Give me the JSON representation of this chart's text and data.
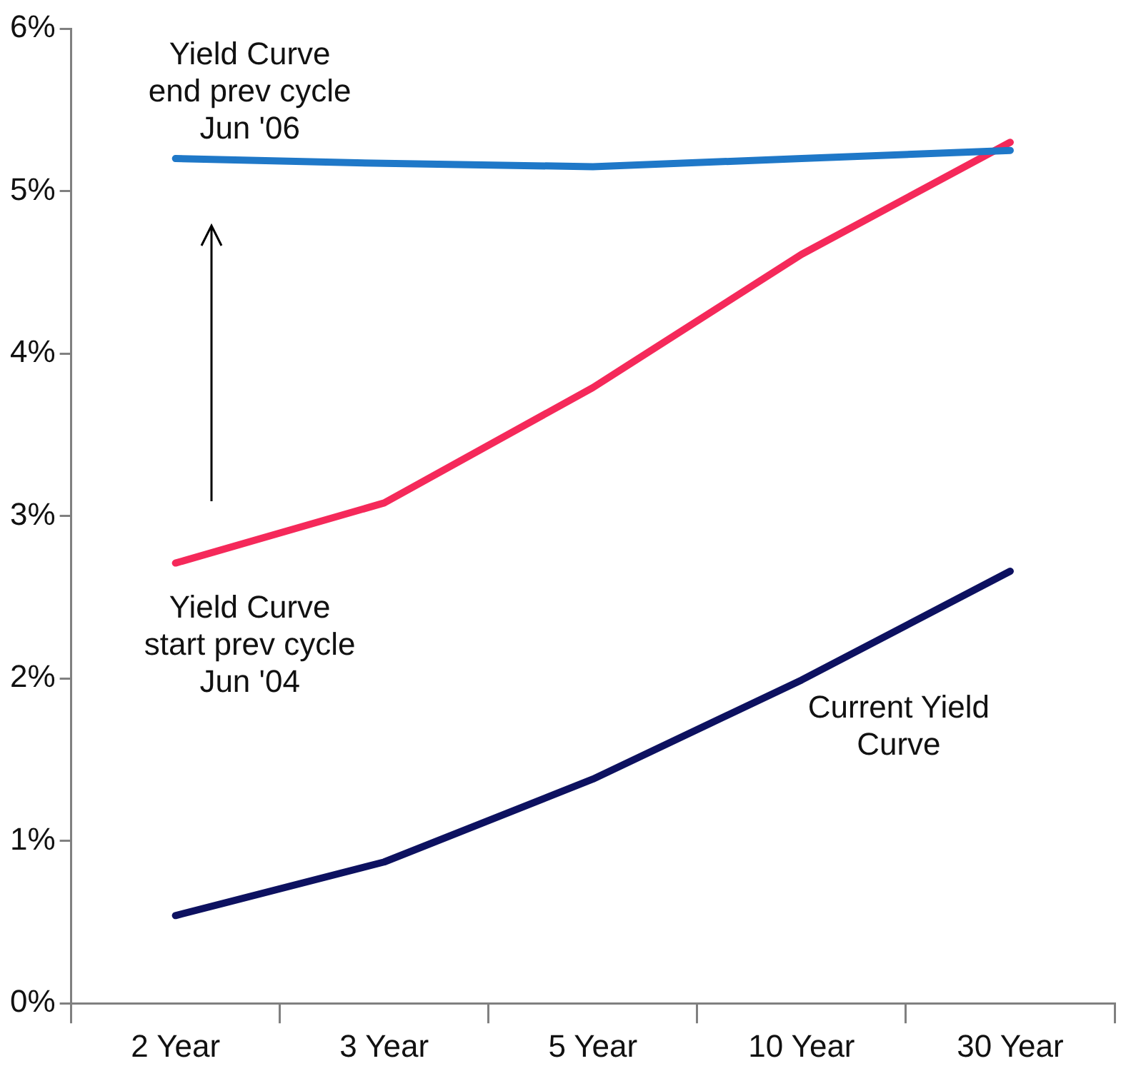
{
  "chart_data": {
    "type": "line",
    "categories": [
      "2 Year",
      "3 Year",
      "5 Year",
      "10 Year",
      "30 Year"
    ],
    "series": [
      {
        "name": "Yield Curve\nend prev cycle\nJun '06",
        "color": "#1f78c8",
        "values": [
          5.2,
          5.17,
          5.15,
          5.2,
          5.25
        ]
      },
      {
        "name": "Yield Curve\nstart prev cycle\nJun '04",
        "color": "#f5295a",
        "values": [
          2.71,
          3.08,
          3.79,
          4.61,
          5.3
        ]
      },
      {
        "name": "Current Yield\nCurve",
        "color": "#0d1160",
        "values": [
          0.54,
          0.87,
          1.38,
          1.99,
          2.66
        ]
      }
    ],
    "ylim": [
      0,
      6
    ],
    "yticks": [
      {
        "value": 0,
        "label": "0%"
      },
      {
        "value": 1,
        "label": "1%"
      },
      {
        "value": 2,
        "label": "2%"
      },
      {
        "value": 3,
        "label": "3%"
      },
      {
        "value": 4,
        "label": "4%"
      },
      {
        "value": 5,
        "label": "5%"
      },
      {
        "value": 6,
        "label": "6%"
      }
    ],
    "grid": false,
    "legend": false,
    "marker": "none",
    "line_style": "solid"
  }
}
